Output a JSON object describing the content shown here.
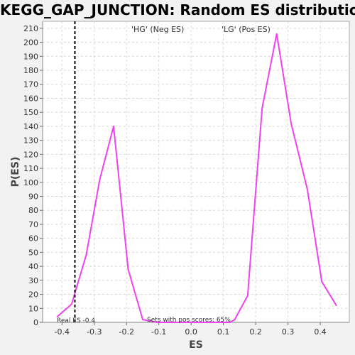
{
  "chart_data": {
    "type": "line",
    "title": "KEGG_GAP_JUNCTION: Random ES distribution",
    "xlabel": "ES",
    "ylabel": "P(ES)",
    "xlim": [
      -0.46,
      0.49
    ],
    "ylim": [
      0,
      215
    ],
    "x_ticks": [
      -0.4,
      -0.3,
      -0.2,
      -0.1,
      0.0,
      0.1,
      0.2,
      0.3,
      0.4
    ],
    "x_tick_labels": [
      "-0.4",
      "-0.3",
      "-0.2",
      "-0.1",
      "0.0",
      "0.1",
      "0.2",
      "0.3",
      "0.4"
    ],
    "y_ticks": [
      0,
      10,
      20,
      30,
      40,
      50,
      60,
      70,
      80,
      90,
      100,
      110,
      120,
      130,
      140,
      150,
      160,
      170,
      180,
      190,
      200,
      210
    ],
    "grid": true,
    "series": [
      {
        "color": "#ee44ee",
        "x": [
          -0.415,
          -0.37,
          -0.325,
          -0.283,
          -0.24,
          -0.195,
          -0.15,
          -0.105,
          -0.06,
          -0.015,
          0.03,
          0.075,
          0.12,
          0.135,
          0.175,
          0.22,
          0.265,
          0.31,
          0.36,
          0.405,
          0.45
        ],
        "y": [
          4,
          13,
          48,
          102,
          140,
          38,
          2,
          0,
          0,
          0,
          0,
          0,
          0,
          2,
          19,
          153,
          206,
          142,
          95,
          29,
          12
        ]
      }
    ],
    "real_es": -0.36,
    "annotations": {
      "neg_label": "'HG' (Neg ES)",
      "pos_label": "'LG' (Pos ES)",
      "real_es_label": "Real ES -0.4",
      "pos_scores_label": "Sets with pos scores: 65%"
    },
    "colors": {
      "neg": "#0000cc",
      "pos": "#dd0000",
      "real_es_line": "#000000",
      "plot_bg": "#ffffff",
      "grid": "#d8d8d8"
    }
  }
}
